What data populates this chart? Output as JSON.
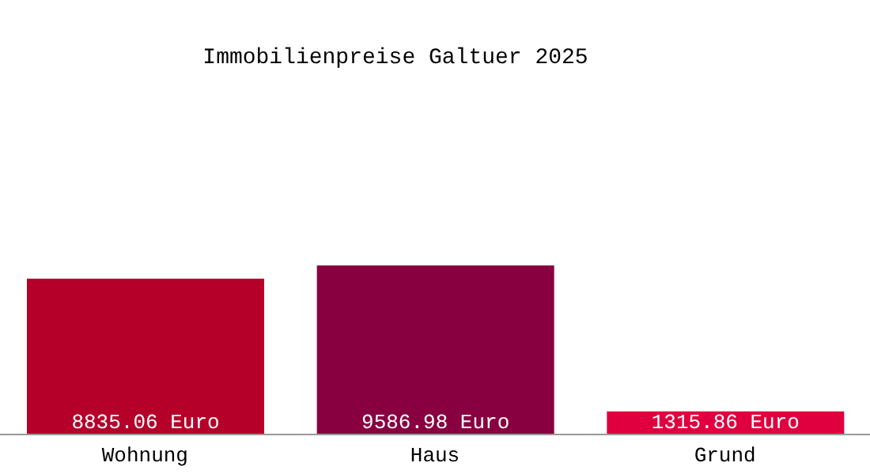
{
  "chart_data": {
    "type": "bar",
    "title": "Immobilienpreise Galtuer 2025",
    "categories": [
      "Wohnung",
      "Haus",
      "Grund"
    ],
    "values": [
      8835.06,
      9586.98,
      1315.86
    ],
    "colors": [
      "#b5002a",
      "#880040",
      "#e0003f"
    ],
    "value_labels": [
      "8835.06 Euro",
      "9586.98 Euro",
      "1315.86 Euro"
    ],
    "grid": false,
    "legend": false
  }
}
